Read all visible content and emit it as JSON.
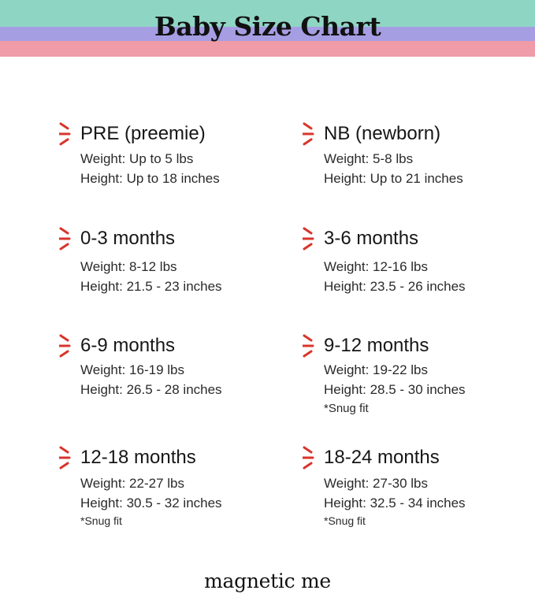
{
  "header": {
    "title": "Baby Size Chart",
    "band_colors": [
      "#8fd5c4",
      "#a59ee3",
      "#f09ca8"
    ]
  },
  "accent_color": "#d9342b",
  "accent_icon": "red-burst-icon",
  "sizes": [
    {
      "title": "PRE (preemie)",
      "weight": "Weight: Up to 5 lbs",
      "height": "Height: Up to 18 inches",
      "note": ""
    },
    {
      "title": "NB (newborn)",
      "weight": "Weight: 5-8 lbs",
      "height": "Height: Up to 21 inches",
      "note": ""
    },
    {
      "title": "0-3 months",
      "weight": "Weight: 8-12 lbs",
      "height": "Height: 21.5 - 23 inches",
      "note": ""
    },
    {
      "title": "3-6 months",
      "weight": "Weight: 12-16 lbs",
      "height": "Height: 23.5 - 26 inches",
      "note": ""
    },
    {
      "title": "6-9 months",
      "weight": "Weight: 16-19 lbs",
      "height": "Height: 26.5 - 28 inches",
      "note": ""
    },
    {
      "title": "9-12 months",
      "weight": "Weight: 19-22 lbs",
      "height": "Height: 28.5 - 30 inches",
      "note": "*Snug fit"
    },
    {
      "title": "12-18 months",
      "weight": "Weight: 22-27 lbs",
      "height": "Height: 30.5 - 32 inches",
      "note": "*Snug fit"
    },
    {
      "title": "18-24 months",
      "weight": "Weight: 27-30 lbs",
      "height": "Height: 32.5 - 34 inches",
      "note": "*Snug fit"
    }
  ],
  "footer": {
    "brand": "magnetic me"
  }
}
